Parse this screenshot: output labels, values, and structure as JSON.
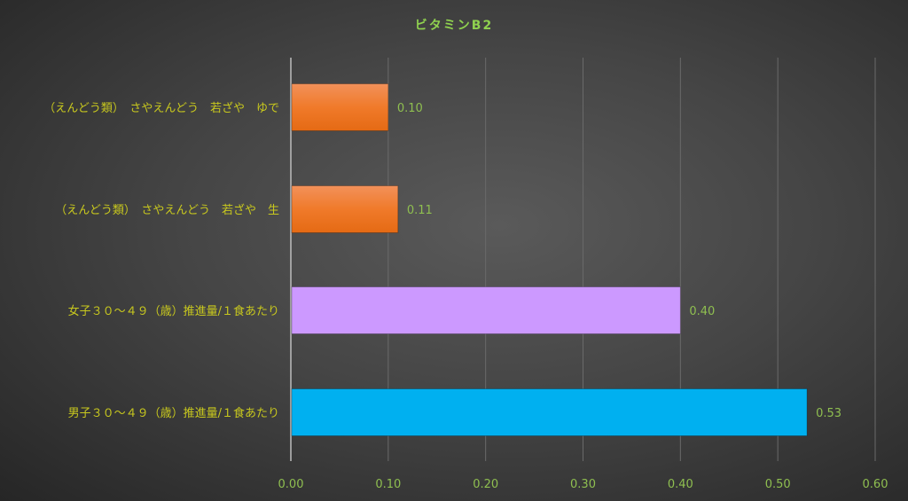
{
  "chart_data": {
    "type": "bar",
    "orientation": "horizontal",
    "title": "ビタミンB2",
    "categories": [
      "（えんどう類）　さやえんどう　若ざや　ゆで",
      "（えんどう類）　さやえんどう　若ざや　生",
      "女子３０～４９（歳）推進量/１食あたり",
      "男子３０～４９（歳）推進量/１食あたり"
    ],
    "values": [
      0.1,
      0.11,
      0.4,
      0.53
    ],
    "value_labels": [
      "0.10",
      "0.11",
      "0.40",
      "0.53"
    ],
    "colors": [
      "#f07a2a",
      "#f07a2a",
      "#cc99ff",
      "#00b0f0"
    ],
    "xlim": [
      0,
      0.6
    ],
    "xticks": [
      "0.00",
      "0.10",
      "0.20",
      "0.30",
      "0.40",
      "0.50",
      "0.60"
    ],
    "grid": true,
    "colors_text": {
      "title": "#8fd14f",
      "category": "#c8c81e",
      "value": "#8fbf50"
    }
  }
}
